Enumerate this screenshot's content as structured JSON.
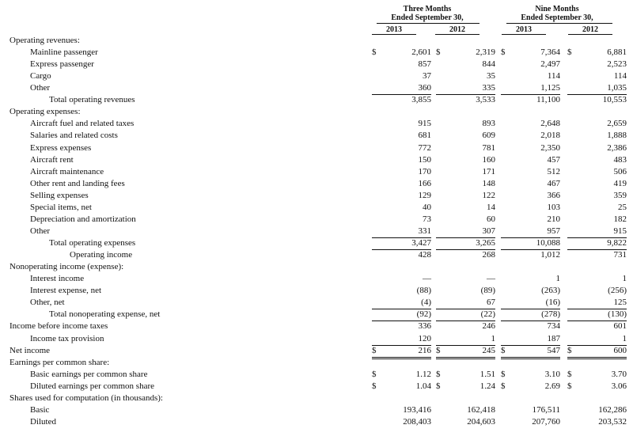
{
  "header": {
    "three_months_line1": "Three Months",
    "three_months_line2": "Ended September 30,",
    "nine_months_line1": "Nine Months",
    "nine_months_line2": "Ended September 30,",
    "years": [
      "2013",
      "2012",
      "2013",
      "2012"
    ]
  },
  "rows": [
    {
      "label": "Operating revenues:",
      "indent": 0,
      "values": []
    },
    {
      "label": "Mainline passenger",
      "indent": 1,
      "values": [
        "2,601",
        "2,319",
        "7,364",
        "6,881"
      ],
      "dollar": true
    },
    {
      "label": "Express passenger",
      "indent": 1,
      "values": [
        "857",
        "844",
        "2,497",
        "2,523"
      ]
    },
    {
      "label": "Cargo",
      "indent": 1,
      "values": [
        "37",
        "35",
        "114",
        "114"
      ]
    },
    {
      "label": "Other",
      "indent": 1,
      "values": [
        "360",
        "335",
        "1,125",
        "1,035"
      ],
      "rule": "single"
    },
    {
      "label": "Total operating revenues",
      "indent": 2,
      "values": [
        "3,855",
        "3,533",
        "11,100",
        "10,553"
      ]
    },
    {
      "label": "Operating expenses:",
      "indent": 0,
      "values": []
    },
    {
      "label": "Aircraft fuel and related taxes",
      "indent": 1,
      "values": [
        "915",
        "893",
        "2,648",
        "2,659"
      ]
    },
    {
      "label": "Salaries and related costs",
      "indent": 1,
      "values": [
        "681",
        "609",
        "2,018",
        "1,888"
      ]
    },
    {
      "label": "Express expenses",
      "indent": 1,
      "values": [
        "772",
        "781",
        "2,350",
        "2,386"
      ]
    },
    {
      "label": "Aircraft rent",
      "indent": 1,
      "values": [
        "150",
        "160",
        "457",
        "483"
      ]
    },
    {
      "label": "Aircraft maintenance",
      "indent": 1,
      "values": [
        "170",
        "171",
        "512",
        "506"
      ]
    },
    {
      "label": "Other rent and landing fees",
      "indent": 1,
      "values": [
        "166",
        "148",
        "467",
        "419"
      ]
    },
    {
      "label": "Selling expenses",
      "indent": 1,
      "values": [
        "129",
        "122",
        "366",
        "359"
      ]
    },
    {
      "label": "Special items, net",
      "indent": 1,
      "values": [
        "40",
        "14",
        "103",
        "25"
      ]
    },
    {
      "label": "Depreciation and amortization",
      "indent": 1,
      "values": [
        "73",
        "60",
        "210",
        "182"
      ]
    },
    {
      "label": "Other",
      "indent": 1,
      "values": [
        "331",
        "307",
        "957",
        "915"
      ],
      "rule": "single"
    },
    {
      "label": "Total operating expenses",
      "indent": 2,
      "values": [
        "3,427",
        "3,265",
        "10,088",
        "9,822"
      ],
      "rule": "single"
    },
    {
      "label": "Operating income",
      "indent": 3,
      "values": [
        "428",
        "268",
        "1,012",
        "731"
      ]
    },
    {
      "label": "Nonoperating income (expense):",
      "indent": 0,
      "values": []
    },
    {
      "label": "Interest income",
      "indent": 1,
      "values": [
        "—",
        "—",
        "1",
        "1"
      ]
    },
    {
      "label": "Interest expense, net",
      "indent": 1,
      "values": [
        "(88)",
        "(89)",
        "(263)",
        "(256)"
      ]
    },
    {
      "label": "Other, net",
      "indent": 1,
      "values": [
        "(4)",
        "67",
        "(16)",
        "125"
      ],
      "rule": "single"
    },
    {
      "label": "Total nonoperating expense, net",
      "indent": 2,
      "values": [
        "(92)",
        "(22)",
        "(278)",
        "(130)"
      ],
      "rule": "single"
    },
    {
      "label": "Income before income taxes",
      "indent": 0,
      "values": [
        "336",
        "246",
        "734",
        "601"
      ]
    },
    {
      "label": "Income tax provision",
      "indent": 1,
      "values": [
        "120",
        "1",
        "187",
        "1"
      ],
      "rule": "single"
    },
    {
      "label": "Net income",
      "indent": 0,
      "values": [
        "216",
        "245",
        "547",
        "600"
      ],
      "dollar": true,
      "rule": "double"
    },
    {
      "label": "Earnings per common share:",
      "indent": 0,
      "values": []
    },
    {
      "label": "Basic earnings per common share",
      "indent": 1,
      "values": [
        "1.12",
        "1.51",
        "3.10",
        "3.70"
      ],
      "dollar": true
    },
    {
      "label": "Diluted earnings per common share",
      "indent": 1,
      "values": [
        "1.04",
        "1.24",
        "2.69",
        "3.06"
      ],
      "dollar": true
    },
    {
      "label": "Shares used for computation (in thousands):",
      "indent": 0,
      "values": []
    },
    {
      "label": "Basic",
      "indent": 1,
      "values": [
        "193,416",
        "162,418",
        "176,511",
        "162,286"
      ]
    },
    {
      "label": "Diluted",
      "indent": 1,
      "values": [
        "208,403",
        "204,603",
        "207,760",
        "203,532"
      ]
    }
  ],
  "currency_symbol": "$"
}
